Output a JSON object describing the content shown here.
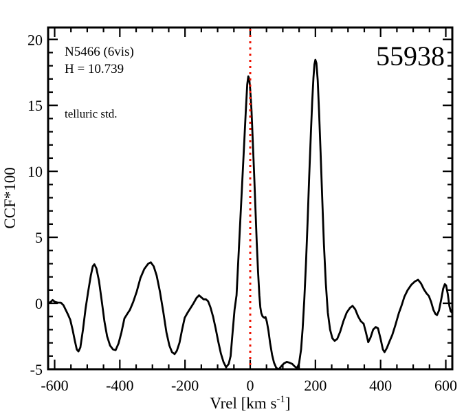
{
  "chart_data": {
    "type": "line",
    "title": "55938",
    "xlabel": "Vrel [km s^-1]",
    "xlabel_prefix": "Vrel [km s",
    "xlabel_sup": "-1",
    "xlabel_suffix": "]",
    "ylabel": "CCF*100",
    "xlim": [
      -620,
      620
    ],
    "ylim": [
      -5,
      20.9
    ],
    "xticks": [
      -600,
      -400,
      -200,
      0,
      200,
      400,
      600
    ],
    "yticks": [
      -5,
      0,
      5,
      10,
      15,
      20
    ],
    "x_minor_step": 50,
    "y_minor_step": 1,
    "grid": false,
    "legend": "none",
    "line_color": "#000000",
    "axis_color": "#000000",
    "background_color": "#ffffff",
    "reference_line": {
      "x": 0,
      "style": "dotted",
      "color": "#ee1100",
      "meaning": "zero relative velocity"
    },
    "labels": {
      "target": "N5466 (6vis)",
      "h_magnitude": "H = 10.739",
      "note": "telluric std.",
      "note_color": "#4b0082",
      "epoch": "55938"
    },
    "series": [
      {
        "name": "CCF",
        "points": [
          [
            -619,
            0.0
          ],
          [
            -612,
            0.1
          ],
          [
            -606,
            0.25
          ],
          [
            -599,
            0.1
          ],
          [
            -590,
            0.05
          ],
          [
            -581,
            0.05
          ],
          [
            -573,
            -0.15
          ],
          [
            -566,
            -0.5
          ],
          [
            -559,
            -0.85
          ],
          [
            -552,
            -1.25
          ],
          [
            -545,
            -2.0
          ],
          [
            -538,
            -2.85
          ],
          [
            -532,
            -3.5
          ],
          [
            -527,
            -3.65
          ],
          [
            -521,
            -3.35
          ],
          [
            -513,
            -2.0
          ],
          [
            -505,
            -0.4
          ],
          [
            -497,
            0.9
          ],
          [
            -489,
            2.1
          ],
          [
            -483,
            2.8
          ],
          [
            -478,
            2.95
          ],
          [
            -472,
            2.65
          ],
          [
            -464,
            1.7
          ],
          [
            -455,
            0.1
          ],
          [
            -447,
            -1.4
          ],
          [
            -439,
            -2.5
          ],
          [
            -430,
            -3.2
          ],
          [
            -421,
            -3.5
          ],
          [
            -413,
            -3.55
          ],
          [
            -404,
            -3.05
          ],
          [
            -395,
            -2.2
          ],
          [
            -386,
            -1.15
          ],
          [
            -377,
            -0.8
          ],
          [
            -369,
            -0.5
          ],
          [
            -359,
            0.1
          ],
          [
            -348,
            0.9
          ],
          [
            -337,
            1.9
          ],
          [
            -325,
            2.6
          ],
          [
            -313,
            3.0
          ],
          [
            -305,
            3.1
          ],
          [
            -296,
            2.8
          ],
          [
            -287,
            2.1
          ],
          [
            -277,
            0.9
          ],
          [
            -267,
            -0.6
          ],
          [
            -257,
            -2.2
          ],
          [
            -248,
            -3.2
          ],
          [
            -240,
            -3.7
          ],
          [
            -232,
            -3.85
          ],
          [
            -225,
            -3.6
          ],
          [
            -217,
            -3.0
          ],
          [
            -209,
            -2.0
          ],
          [
            -201,
            -1.1
          ],
          [
            -193,
            -0.75
          ],
          [
            -184,
            -0.4
          ],
          [
            -174,
            0.0
          ],
          [
            -165,
            0.4
          ],
          [
            -157,
            0.6
          ],
          [
            -150,
            0.45
          ],
          [
            -143,
            0.3
          ],
          [
            -136,
            0.3
          ],
          [
            -129,
            0.15
          ],
          [
            -122,
            -0.3
          ],
          [
            -114,
            -1.0
          ],
          [
            -106,
            -1.9
          ],
          [
            -98,
            -2.9
          ],
          [
            -90,
            -3.8
          ],
          [
            -82,
            -4.45
          ],
          [
            -74,
            -4.85
          ],
          [
            -66,
            -4.6
          ],
          [
            -60,
            -4.0
          ],
          [
            -55,
            -2.5
          ],
          [
            -48,
            -0.5
          ],
          [
            -42,
            0.6
          ],
          [
            -36,
            3.5
          ],
          [
            -30,
            6.5
          ],
          [
            -24,
            9.4
          ],
          [
            -18,
            12.4
          ],
          [
            -13,
            14.8
          ],
          [
            -9,
            16.6
          ],
          [
            -6,
            17.2
          ],
          [
            -3,
            17.0
          ],
          [
            0,
            16.2
          ],
          [
            4,
            14.6
          ],
          [
            8,
            12.2
          ],
          [
            12,
            9.8
          ],
          [
            16,
            7.2
          ],
          [
            20,
            4.6
          ],
          [
            24,
            2.4
          ],
          [
            28,
            0.6
          ],
          [
            31,
            -0.3
          ],
          [
            34,
            -0.75
          ],
          [
            38,
            -1.0
          ],
          [
            43,
            -1.1
          ],
          [
            47,
            -1.05
          ],
          [
            51,
            -1.4
          ],
          [
            56,
            -2.1
          ],
          [
            61,
            -3.0
          ],
          [
            67,
            -3.9
          ],
          [
            73,
            -4.5
          ],
          [
            80,
            -4.9
          ],
          [
            88,
            -5.0
          ],
          [
            96,
            -4.75
          ],
          [
            104,
            -4.55
          ],
          [
            112,
            -4.45
          ],
          [
            120,
            -4.5
          ],
          [
            129,
            -4.6
          ],
          [
            137,
            -4.8
          ],
          [
            144,
            -4.9
          ],
          [
            150,
            -4.55
          ],
          [
            156,
            -3.5
          ],
          [
            161,
            -1.9
          ],
          [
            166,
            0.3
          ],
          [
            171,
            3.0
          ],
          [
            176,
            6.2
          ],
          [
            181,
            9.6
          ],
          [
            186,
            12.8
          ],
          [
            190,
            15.2
          ],
          [
            194,
            17.1
          ],
          [
            197,
            18.1
          ],
          [
            200,
            18.45
          ],
          [
            203,
            18.2
          ],
          [
            207,
            16.9
          ],
          [
            211,
            14.6
          ],
          [
            216,
            11.4
          ],
          [
            221,
            7.9
          ],
          [
            226,
            4.5
          ],
          [
            232,
            1.5
          ],
          [
            238,
            -0.7
          ],
          [
            245,
            -2.0
          ],
          [
            252,
            -2.65
          ],
          [
            259,
            -2.85
          ],
          [
            267,
            -2.7
          ],
          [
            276,
            -2.15
          ],
          [
            286,
            -1.35
          ],
          [
            296,
            -0.7
          ],
          [
            306,
            -0.35
          ],
          [
            314,
            -0.2
          ],
          [
            322,
            -0.45
          ],
          [
            331,
            -1.0
          ],
          [
            339,
            -1.35
          ],
          [
            348,
            -1.55
          ],
          [
            355,
            -2.2
          ],
          [
            362,
            -2.95
          ],
          [
            369,
            -2.6
          ],
          [
            377,
            -2.0
          ],
          [
            385,
            -1.8
          ],
          [
            392,
            -1.9
          ],
          [
            400,
            -2.7
          ],
          [
            407,
            -3.5
          ],
          [
            412,
            -3.7
          ],
          [
            419,
            -3.4
          ],
          [
            428,
            -2.85
          ],
          [
            436,
            -2.4
          ],
          [
            446,
            -1.6
          ],
          [
            456,
            -0.75
          ],
          [
            464,
            -0.2
          ],
          [
            473,
            0.5
          ],
          [
            483,
            1.0
          ],
          [
            494,
            1.4
          ],
          [
            505,
            1.65
          ],
          [
            515,
            1.78
          ],
          [
            524,
            1.5
          ],
          [
            533,
            1.05
          ],
          [
            541,
            0.75
          ],
          [
            548,
            0.55
          ],
          [
            555,
            0.1
          ],
          [
            562,
            -0.5
          ],
          [
            568,
            -0.8
          ],
          [
            573,
            -0.9
          ],
          [
            579,
            -0.55
          ],
          [
            586,
            0.3
          ],
          [
            592,
            1.1
          ],
          [
            597,
            1.45
          ],
          [
            601,
            1.35
          ],
          [
            606,
            0.7
          ],
          [
            611,
            -0.2
          ],
          [
            615,
            -0.6
          ],
          [
            619,
            -0.7
          ]
        ]
      }
    ]
  }
}
